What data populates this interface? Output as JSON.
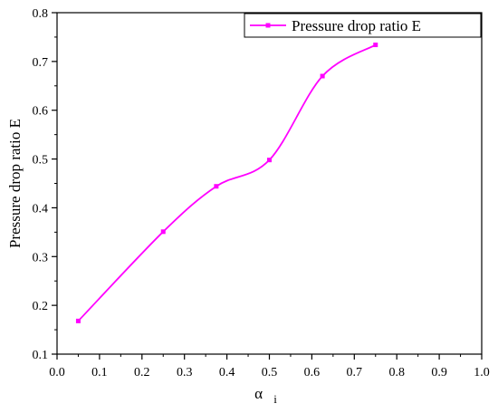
{
  "chart_data": {
    "type": "line",
    "x": [
      0.05,
      0.25,
      0.375,
      0.5,
      0.625,
      0.75
    ],
    "series": [
      {
        "name": "Pressure drop ratio E",
        "values": [
          0.168,
          0.351,
          0.444,
          0.498,
          0.67,
          0.734
        ],
        "color": "#ff00ff",
        "marker": "square",
        "smooth": true
      }
    ],
    "xlabel_main": "α",
    "xlabel_sub": "i",
    "ylabel": "Pressure drop ratio E",
    "xlim": [
      0.0,
      1.0
    ],
    "ylim": [
      0.1,
      0.8
    ],
    "xticks": [
      0.0,
      0.1,
      0.2,
      0.3,
      0.4,
      0.5,
      0.6,
      0.7,
      0.8,
      0.9,
      1.0
    ],
    "xtick_labels": [
      "0.0",
      "0.1",
      "0.2",
      "0.3",
      "0.4",
      "0.5",
      "0.6",
      "0.7",
      "0.8",
      "0.9",
      "1.0"
    ],
    "yticks": [
      0.1,
      0.2,
      0.3,
      0.4,
      0.5,
      0.6,
      0.7,
      0.8
    ],
    "ytick_labels": [
      "0.1",
      "0.2",
      "0.3",
      "0.4",
      "0.5",
      "0.6",
      "0.7",
      "0.8"
    ],
    "grid": false,
    "legend_position": "top-right"
  }
}
